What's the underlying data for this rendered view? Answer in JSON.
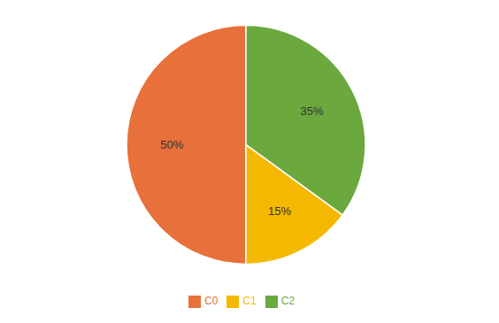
{
  "chart_data": {
    "type": "pie",
    "categories": [
      "C0",
      "C1",
      "C2"
    ],
    "values": [
      50,
      15,
      35
    ],
    "value_labels": [
      "50%",
      "15%",
      "35%"
    ],
    "colors": [
      "#E8703A",
      "#F5B800",
      "#6BA83E"
    ],
    "data_labels": true,
    "legend": "bottom"
  }
}
